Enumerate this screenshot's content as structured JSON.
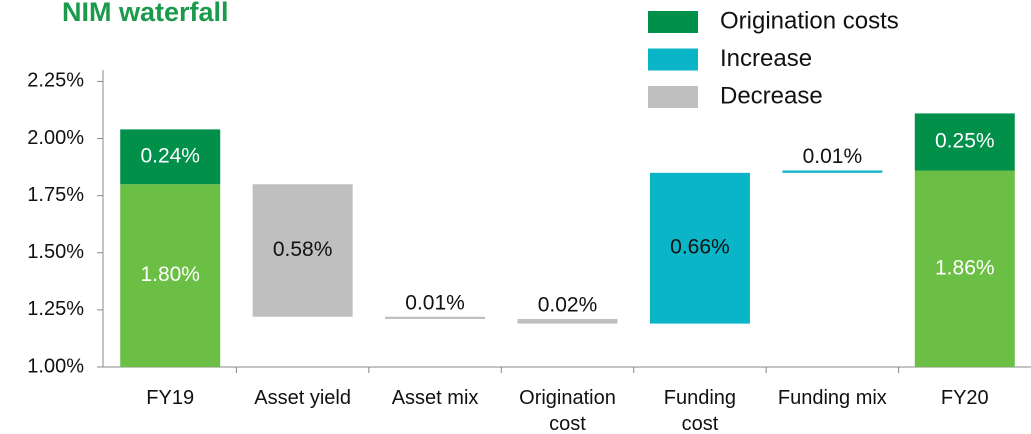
{
  "chart_data": {
    "type": "waterfall",
    "title": "NIM waterfall",
    "categories": [
      "FY19",
      "Asset yield",
      "Asset mix",
      "Origination\ncost",
      "Funding\ncost",
      "Funding mix",
      "FY20"
    ],
    "series": [
      {
        "role": "total",
        "color": "#6cbf45",
        "values": [
          1.8,
          null,
          null,
          null,
          null,
          null,
          1.86
        ],
        "value_labels": [
          "1.80%",
          null,
          null,
          null,
          null,
          null,
          "1.86%"
        ]
      },
      {
        "name": "Origination costs",
        "role": "top",
        "color": "#00904a",
        "values": [
          0.24,
          null,
          null,
          null,
          null,
          null,
          0.25
        ],
        "value_labels": [
          "0.24%",
          null,
          null,
          null,
          null,
          null,
          "0.25%"
        ]
      },
      {
        "name": "Increase",
        "role": "increase",
        "color": "#0bb5c8",
        "values": [
          null,
          null,
          null,
          null,
          0.66,
          0.01,
          null
        ],
        "value_labels": [
          null,
          null,
          null,
          null,
          "0.66%",
          "0.01%",
          null
        ]
      },
      {
        "name": "Decrease",
        "role": "decrease",
        "color": "#bfbfbf",
        "values": [
          null,
          0.58,
          0.01,
          0.02,
          null,
          null,
          null
        ],
        "value_labels": [
          null,
          "0.58%",
          "0.01%",
          "0.02%",
          null,
          null,
          null
        ]
      }
    ],
    "ylim": [
      1.0,
      2.3
    ],
    "yticks": [
      {
        "value": 1.0,
        "label": "1.00%"
      },
      {
        "value": 1.25,
        "label": "1.25%"
      },
      {
        "value": 1.5,
        "label": "1.50%"
      },
      {
        "value": 1.75,
        "label": "1.75%"
      },
      {
        "value": 2.0,
        "label": "2.00%"
      },
      {
        "value": 2.25,
        "label": "2.25%"
      }
    ],
    "legend": "top-right"
  }
}
